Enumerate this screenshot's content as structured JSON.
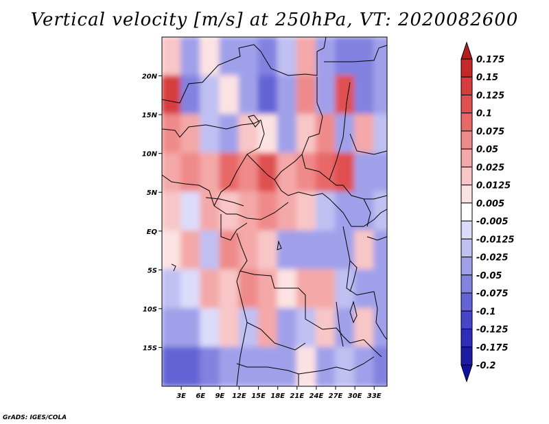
{
  "chart_data": {
    "type": "heatmap",
    "title": "Vertical velocity [m/s] at 250hPa, VT: 2020082600",
    "xlabel": "",
    "ylabel": "",
    "lon_range": [
      0,
      35
    ],
    "lat_range": [
      -20,
      25
    ],
    "x_ticks": [
      {
        "value": 3,
        "label": "3E"
      },
      {
        "value": 6,
        "label": "6E"
      },
      {
        "value": 9,
        "label": "9E"
      },
      {
        "value": 12,
        "label": "12E"
      },
      {
        "value": 15,
        "label": "15E"
      },
      {
        "value": 18,
        "label": "18E"
      },
      {
        "value": 21,
        "label": "21E"
      },
      {
        "value": 24,
        "label": "24E"
      },
      {
        "value": 27,
        "label": "27E"
      },
      {
        "value": 30,
        "label": "30E"
      },
      {
        "value": 33,
        "label": "33E"
      }
    ],
    "y_ticks": [
      {
        "value": 20,
        "label": "20N"
      },
      {
        "value": 15,
        "label": "15N"
      },
      {
        "value": 10,
        "label": "10N"
      },
      {
        "value": 5,
        "label": "5N"
      },
      {
        "value": 0,
        "label": "EQ"
      },
      {
        "value": -5,
        "label": "5S"
      },
      {
        "value": -10,
        "label": "10S"
      },
      {
        "value": -15,
        "label": "15S"
      }
    ],
    "colorbar": {
      "levels": [
        "0.175",
        "0.15",
        "0.125",
        "0.1",
        "0.075",
        "0.05",
        "0.025",
        "0.0125",
        "0.005",
        "-0.005",
        "-0.0125",
        "-0.025",
        "-0.05",
        "-0.075",
        "-0.1",
        "-0.125",
        "-0.175",
        "-0.2"
      ],
      "colors": [
        "#b41e1e",
        "#c62828",
        "#d63c3c",
        "#e05050",
        "#e86868",
        "#ef8a8a",
        "#f4a8a8",
        "#f8c6c6",
        "#fce2e2",
        "#ffffff",
        "#dcdcfa",
        "#c0c0f2",
        "#a0a0ea",
        "#8282e0",
        "#6464d6",
        "#4646c8",
        "#2d2db8",
        "#1c1ca4",
        "#1010a0"
      ]
    },
    "field_sample": {
      "lons": [
        1.5,
        4.5,
        7.5,
        10.5,
        13.5,
        16.5,
        19.5,
        22.5,
        25.5,
        28.5,
        31.5,
        34.5
      ],
      "lats": [
        22.5,
        17.5,
        12.5,
        7.5,
        2.5,
        -2.5,
        -7.5,
        -12.5,
        -17.5
      ],
      "values": [
        [
          0.02,
          -0.03,
          0.01,
          -0.05,
          -0.04,
          -0.06,
          -0.02,
          0.03,
          -0.05,
          -0.06,
          -0.07,
          -0.05
        ],
        [
          0.14,
          -0.06,
          -0.02,
          0.01,
          -0.03,
          -0.08,
          -0.05,
          0.05,
          -0.04,
          0.1,
          -0.06,
          -0.04
        ],
        [
          0.06,
          0.03,
          -0.02,
          -0.04,
          0.02,
          0.01,
          -0.03,
          0.02,
          0.06,
          -0.03,
          0.04,
          -0.02
        ],
        [
          0.04,
          0.05,
          0.03,
          0.08,
          0.06,
          0.1,
          0.04,
          0.05,
          0.08,
          0.12,
          -0.03,
          -0.05
        ],
        [
          0.02,
          -0.01,
          0.03,
          0.02,
          0.04,
          0.05,
          0.03,
          0.02,
          -0.02,
          -0.03,
          -0.04,
          -0.02
        ],
        [
          0.01,
          0.03,
          -0.02,
          0.05,
          0.04,
          0.02,
          -0.03,
          -0.05,
          -0.04,
          -0.03,
          0.02,
          -0.03
        ],
        [
          -0.02,
          -0.01,
          0.03,
          0.02,
          0.05,
          0.04,
          0.01,
          0.04,
          0.03,
          -0.02,
          -0.04,
          -0.05
        ],
        [
          -0.05,
          -0.03,
          -0.01,
          0.02,
          -0.02,
          0.03,
          -0.03,
          -0.02,
          0.02,
          -0.03,
          0.02,
          -0.04
        ],
        [
          -0.08,
          -0.1,
          -0.06,
          -0.03,
          -0.05,
          -0.03,
          -0.04,
          0.01,
          -0.03,
          -0.02,
          -0.03,
          -0.06
        ]
      ]
    }
  },
  "credit": "GrADS: IGES/COLA"
}
